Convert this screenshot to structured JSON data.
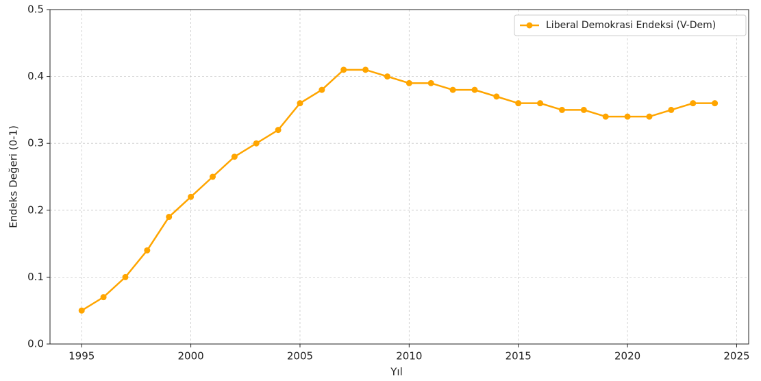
{
  "chart_data": {
    "type": "line",
    "xlabel": "Yıl",
    "ylabel": "Endeks Değeri (0-1)",
    "x": [
      1995,
      1996,
      1997,
      1998,
      1999,
      2000,
      2001,
      2002,
      2003,
      2004,
      2005,
      2006,
      2007,
      2008,
      2009,
      2010,
      2011,
      2012,
      2013,
      2014,
      2015,
      2016,
      2017,
      2018,
      2019,
      2020,
      2021,
      2022,
      2023,
      2024
    ],
    "series": [
      {
        "name": "Liberal Demokrasi Endeksi (V-Dem)",
        "color": "#ffa500",
        "values": [
          0.05,
          0.07,
          0.1,
          0.14,
          0.19,
          0.22,
          0.25,
          0.28,
          0.3,
          0.32,
          0.36,
          0.38,
          0.41,
          0.41,
          0.4,
          0.39,
          0.39,
          0.38,
          0.38,
          0.37,
          0.36,
          0.36,
          0.35,
          0.35,
          0.34,
          0.34,
          0.34,
          0.35,
          0.36,
          0.36
        ]
      }
    ],
    "xlim": [
      1993.55,
      2025.55
    ],
    "xticks": [
      1995,
      2000,
      2005,
      2010,
      2015,
      2020,
      2025
    ],
    "ylim": [
      0,
      0.5
    ],
    "yticks": [
      {
        "value": 0,
        "label": "0.0"
      },
      0.1,
      0.2,
      0.3,
      0.4,
      0.5
    ],
    "grid": true,
    "legend": "upper right"
  }
}
